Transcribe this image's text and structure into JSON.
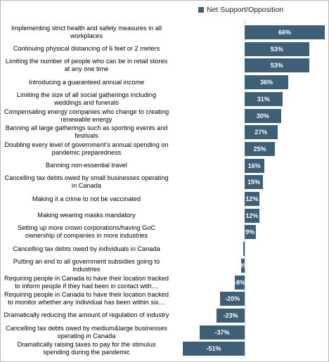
{
  "chart_data": {
    "type": "bar",
    "orientation": "horizontal",
    "categories": [
      "Implementing strict health and safety measures in all workplaces",
      "Continuing physical distancing of 6 feet or 2 meters",
      "Limiting the number of people who can be in retail stores at any one time",
      "Introducing a guaranteed annual income",
      "Limiting the size of all social gatherings including weddings and funerals",
      "Compensating energy companies who change to creating renewable energy",
      "Banning all large gatherings such as sporting events and festivals",
      "Doubling  every level of government’s  annual spending on pandemic preparedness",
      "Banning non-essential travel",
      "Cancelling tax debts owed by small businesses operating in Canada",
      "Making it a crime to not be vaccinated",
      "Making wearing masks mandatory",
      "Setting up more crown corporations/having GoC ownership of companies in more industries",
      "Cancelling tax debts owed by individuals in Canada",
      "Putting an end to all government subsidies going to industries",
      "Requiring people in Canada to have their location tracked to inform people if they had been in contact with…",
      "Requiring people in Canada to have their location tracked to monitor whether any individual has been within six…",
      "Dramatically reducing the amount of regulation of industry",
      "Cancelling tax debts owed by medium&large businesses operating in Canada",
      "Dramatically raising taxes to pay for the stimulus spending during the pandemic"
    ],
    "series": [
      {
        "name": "Net Support/Opposition",
        "color": "#3e5f78",
        "values": [
          66,
          53,
          53,
          36,
          31,
          30,
          27,
          25,
          16,
          15,
          12,
          12,
          9,
          -1,
          -3,
          -8,
          -20,
          -23,
          -37,
          -51
        ],
        "value_labels": [
          "66%",
          "53%",
          "53%",
          "36%",
          "31%",
          "30%",
          "27%",
          "25%",
          "16%",
          "15%",
          "12%",
          "12%",
          "9%",
          null,
          "-3%",
          "-8%",
          "-20%",
          "-23%",
          "-37%",
          "-51%"
        ]
      }
    ]
  }
}
